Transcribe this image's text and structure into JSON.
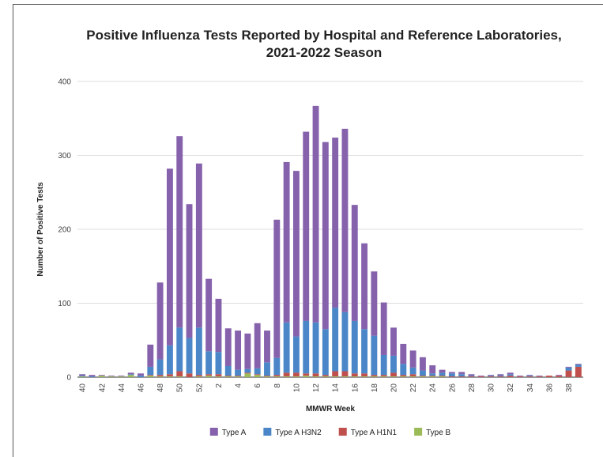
{
  "chart_data": {
    "type": "stacked-bar",
    "title": "Positive Influenza Tests Reported by Hospital and Reference Laboratories,",
    "subtitle": "2021-2022 Season",
    "x_label": "MMWR Week",
    "y_label": "Number of Positive Tests",
    "categories": [
      "40",
      null,
      "42",
      null,
      "44",
      null,
      "46",
      null,
      "48",
      null,
      "50",
      null,
      "52",
      null,
      "2",
      null,
      "4",
      null,
      "6",
      null,
      "8",
      null,
      "10",
      null,
      "12",
      null,
      "14",
      null,
      "16",
      null,
      "18",
      null,
      "20",
      null,
      "22",
      null,
      "24",
      null,
      "26",
      null,
      "28",
      null,
      "30",
      null,
      "32",
      null,
      "34",
      null,
      "36",
      null,
      "38",
      null
    ],
    "series": [
      {
        "name": "Type A",
        "color": "#8661ac",
        "values": [
          2,
          2,
          1,
          1,
          1,
          2,
          3,
          30,
          104,
          239,
          259,
          181,
          222,
          98,
          72,
          51,
          53,
          48,
          61,
          43,
          187,
          217,
          224,
          256,
          293,
          253,
          230,
          248,
          157,
          116,
          87,
          71,
          38,
          27,
          23,
          18,
          11,
          4,
          2,
          3,
          2,
          1,
          1,
          2,
          2,
          1,
          1,
          1,
          0,
          1,
          1,
          1
        ]
      },
      {
        "name": "Type A H3N2",
        "color": "#4a86c8",
        "values": [
          1,
          1,
          0,
          0,
          0,
          1,
          2,
          11,
          21,
          39,
          59,
          48,
          64,
          31,
          30,
          13,
          8,
          5,
          8,
          18,
          23,
          68,
          49,
          71,
          69,
          62,
          86,
          80,
          71,
          60,
          53,
          27,
          23,
          15,
          9,
          7,
          3,
          4,
          4,
          3,
          1,
          0,
          1,
          1,
          2,
          0,
          1,
          0,
          0,
          0,
          4,
          3
        ]
      },
      {
        "name": "Type A H1N1",
        "color": "#c0504d",
        "values": [
          0,
          0,
          0,
          0,
          0,
          0,
          0,
          1,
          2,
          3,
          7,
          5,
          2,
          2,
          3,
          1,
          1,
          1,
          1,
          1,
          2,
          5,
          5,
          3,
          4,
          2,
          7,
          7,
          4,
          4,
          2,
          2,
          5,
          2,
          3,
          1,
          1,
          1,
          1,
          1,
          1,
          1,
          1,
          1,
          2,
          1,
          1,
          1,
          2,
          2,
          9,
          14
        ]
      },
      {
        "name": "Type B",
        "color": "#9bbb59",
        "values": [
          1,
          0,
          2,
          1,
          1,
          3,
          0,
          2,
          1,
          1,
          1,
          0,
          1,
          2,
          1,
          1,
          1,
          5,
          3,
          1,
          1,
          1,
          1,
          2,
          1,
          1,
          1,
          1,
          1,
          1,
          1,
          1,
          1,
          1,
          1,
          1,
          1,
          1,
          0,
          0,
          0,
          0,
          0,
          0,
          0,
          0,
          0,
          0,
          0,
          0,
          0,
          0
        ]
      }
    ],
    "ylim": [
      0,
      400
    ],
    "yticks": [
      0,
      100,
      200,
      300,
      400
    ],
    "grid": true,
    "legend": "bottom"
  }
}
